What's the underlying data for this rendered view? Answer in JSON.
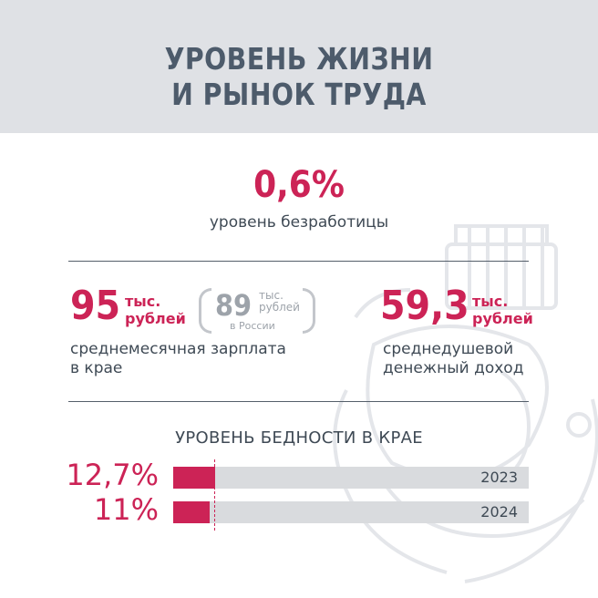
{
  "header": {
    "line1": "УРОВЕНЬ ЖИЗНИ",
    "line2": "И РЫНОК ТРУДА"
  },
  "unemployment": {
    "value": "0,6%",
    "label": "уровень безработицы"
  },
  "salary": {
    "value": "95",
    "unit_line1": "тыс.",
    "unit_line2": "рублей",
    "russia_value": "89",
    "russia_unit_line1": "тыс.",
    "russia_unit_line2": "рублей",
    "russia_label": "в России",
    "caption_line1": "среднемесячная зарплата",
    "caption_line2": "в крае"
  },
  "income": {
    "value": "59,3",
    "unit_line1": "тыс.",
    "unit_line2": "рублей",
    "caption_line1": "среднедушевой",
    "caption_line2": "денежный доход"
  },
  "chart_data": {
    "type": "bar",
    "title": "УРОВЕНЬ БЕДНОСТИ В КРАЕ",
    "categories": [
      "2023",
      "2024"
    ],
    "values": [
      12.7,
      11
    ],
    "value_labels": [
      "12,7%",
      "11%"
    ],
    "unit": "%",
    "orientation": "horizontal",
    "colors": {
      "fill": "#cc2356",
      "track": "#d9dbde"
    }
  },
  "colors": {
    "accent": "#cc2356",
    "header_bg": "#dfe1e5",
    "text": "#3f4a55"
  }
}
